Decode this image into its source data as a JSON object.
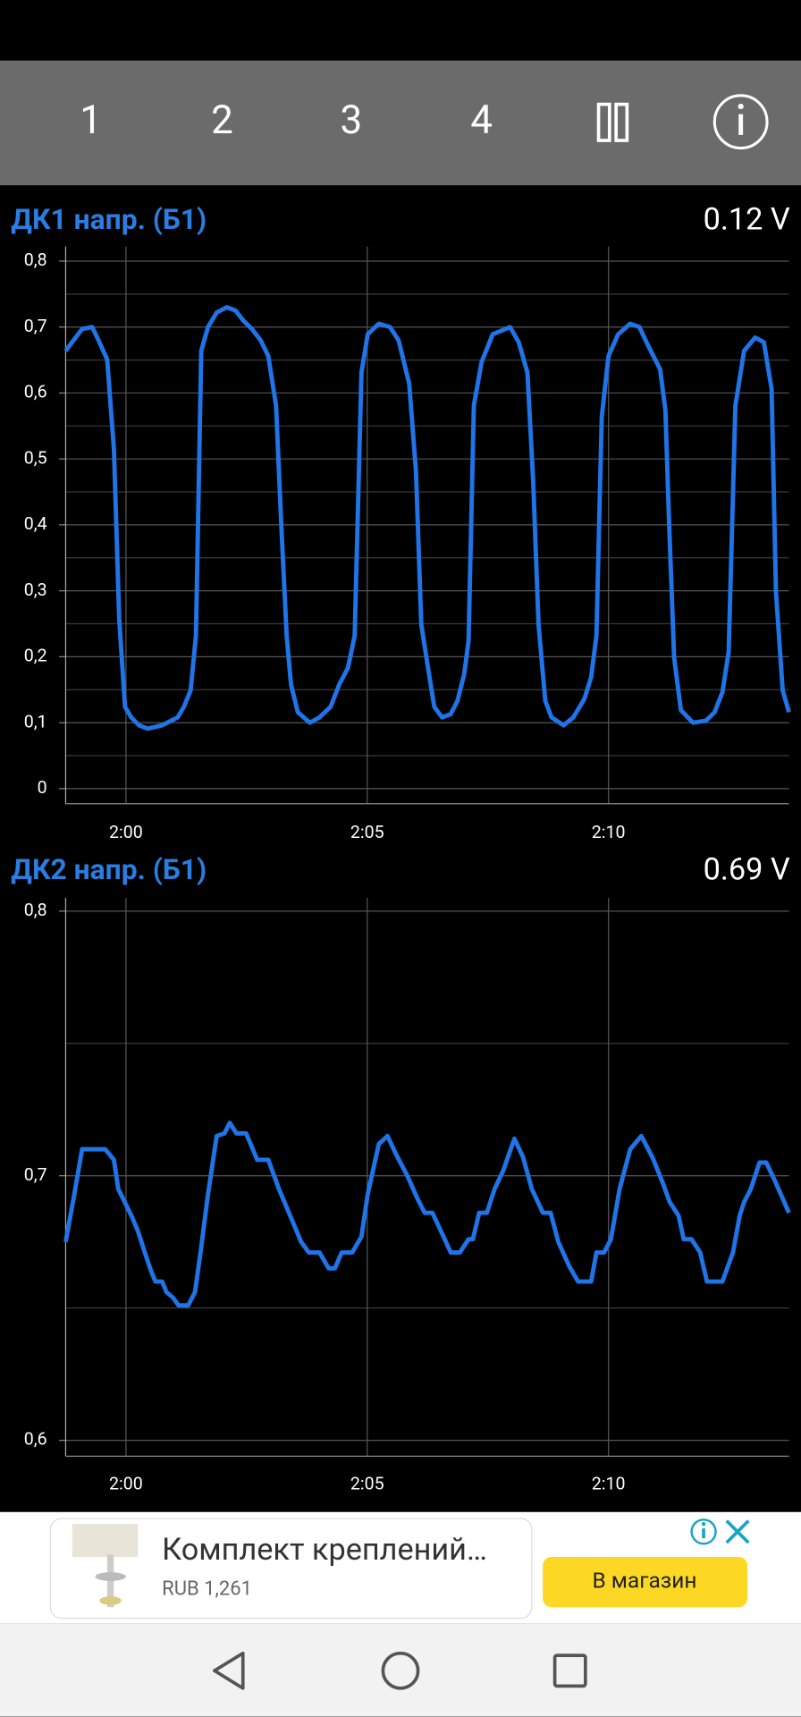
{
  "toolbar": {
    "buttons": [
      "1",
      "2",
      "3",
      "4"
    ]
  },
  "chart_data": [
    {
      "type": "line",
      "title": "ДК1 напр. (Б1)",
      "readout": "0.12 V",
      "color": "#1f74e8",
      "xlim": [
        118.75,
        133.74
      ],
      "xticks": [
        {
          "value": 120,
          "label": "2:00"
        },
        {
          "value": 125,
          "label": "2:05"
        },
        {
          "value": 130,
          "label": "2:10"
        }
      ],
      "ylim": [
        -0.023,
        0.822
      ],
      "yticks": [
        {
          "value": 0.8,
          "label": "0,8"
        },
        {
          "value": 0.7,
          "label": "0,7"
        },
        {
          "value": 0.6,
          "label": "0,6"
        },
        {
          "value": 0.5,
          "label": "0,5"
        },
        {
          "value": 0.4,
          "label": "0,4"
        },
        {
          "value": 0.3,
          "label": "0,3"
        },
        {
          "value": 0.2,
          "label": "0,2"
        },
        {
          "value": 0.1,
          "label": "0,1"
        },
        0
      ],
      "minor_yticks": [
        0.05,
        0.15,
        0.25,
        0.35,
        0.45,
        0.55,
        0.65,
        0.75
      ],
      "grid": true,
      "x": [
        118.75,
        119.09,
        119.3,
        119.43,
        119.61,
        119.75,
        119.86,
        119.98,
        120.11,
        120.27,
        120.45,
        120.75,
        121.07,
        121.2,
        121.34,
        121.45,
        121.56,
        121.7,
        121.88,
        122.09,
        122.27,
        122.43,
        122.61,
        122.79,
        122.95,
        123.11,
        123.22,
        123.33,
        123.42,
        123.56,
        123.81,
        124.01,
        124.24,
        124.42,
        124.6,
        124.74,
        124.88,
        125.01,
        125.24,
        125.47,
        125.65,
        125.87,
        126.01,
        126.12,
        126.26,
        126.39,
        126.55,
        126.73,
        126.87,
        127.01,
        127.1,
        127.21,
        127.37,
        127.6,
        127.96,
        128.14,
        128.32,
        128.44,
        128.55,
        128.69,
        128.82,
        129.07,
        129.27,
        129.5,
        129.64,
        129.75,
        129.86,
        130.0,
        130.2,
        130.45,
        130.64,
        130.82,
        131.07,
        131.18,
        131.25,
        131.36,
        131.5,
        131.75,
        132.02,
        132.2,
        132.36,
        132.49,
        132.63,
        132.81,
        133.04,
        133.22,
        133.38,
        133.47,
        133.61,
        133.74
      ],
      "values": [
        0.664,
        0.697,
        0.7,
        0.68,
        0.651,
        0.515,
        0.257,
        0.124,
        0.108,
        0.096,
        0.091,
        0.096,
        0.108,
        0.124,
        0.149,
        0.232,
        0.664,
        0.7,
        0.722,
        0.73,
        0.725,
        0.71,
        0.697,
        0.68,
        0.656,
        0.581,
        0.398,
        0.232,
        0.158,
        0.116,
        0.1,
        0.108,
        0.124,
        0.158,
        0.183,
        0.232,
        0.631,
        0.689,
        0.705,
        0.7,
        0.68,
        0.614,
        0.481,
        0.249,
        0.183,
        0.124,
        0.108,
        0.113,
        0.133,
        0.174,
        0.224,
        0.581,
        0.647,
        0.689,
        0.7,
        0.677,
        0.631,
        0.465,
        0.249,
        0.133,
        0.108,
        0.096,
        0.108,
        0.136,
        0.169,
        0.232,
        0.564,
        0.656,
        0.689,
        0.705,
        0.7,
        0.672,
        0.636,
        0.573,
        0.415,
        0.199,
        0.119,
        0.1,
        0.103,
        0.116,
        0.146,
        0.207,
        0.581,
        0.664,
        0.684,
        0.677,
        0.606,
        0.299,
        0.149,
        0.116
      ]
    },
    {
      "type": "line",
      "title": "ДК2 напр. (Б1)",
      "readout": "0.69 V",
      "color": "#1f74e8",
      "xlim": [
        118.75,
        133.74
      ],
      "xticks": [
        {
          "value": 120,
          "label": "2:00"
        },
        {
          "value": 125,
          "label": "2:05"
        },
        {
          "value": 130,
          "label": "2:10"
        }
      ],
      "ylim": [
        0.594,
        0.805
      ],
      "yticks": [
        {
          "value": 0.8,
          "label": "0,8"
        },
        {
          "value": 0.7,
          "label": "0,7"
        },
        {
          "value": 0.6,
          "label": "0,6"
        }
      ],
      "minor_yticks": [
        0.65,
        0.75
      ],
      "grid": true,
      "x": [
        118.75,
        118.93,
        119.09,
        119.57,
        119.75,
        119.84,
        120.11,
        120.25,
        120.39,
        120.52,
        120.61,
        120.75,
        120.84,
        120.97,
        121.09,
        121.29,
        121.43,
        121.56,
        121.7,
        121.88,
        122.04,
        122.15,
        122.29,
        122.49,
        122.72,
        122.95,
        123.17,
        123.4,
        123.63,
        123.79,
        124.01,
        124.2,
        124.33,
        124.47,
        124.69,
        124.88,
        125.01,
        125.24,
        125.42,
        125.6,
        125.83,
        126.05,
        126.19,
        126.35,
        126.58,
        126.73,
        126.92,
        127.1,
        127.19,
        127.32,
        127.48,
        127.64,
        127.82,
        128.05,
        128.23,
        128.41,
        128.64,
        128.8,
        128.96,
        129.18,
        129.37,
        129.64,
        129.75,
        129.91,
        130.05,
        130.23,
        130.45,
        130.68,
        130.91,
        131.13,
        131.27,
        131.45,
        131.56,
        131.72,
        131.9,
        132.04,
        132.36,
        132.58,
        132.72,
        132.81,
        132.95,
        133.13,
        133.27,
        133.45,
        133.74
      ],
      "values": [
        0.675,
        0.693,
        0.71,
        0.71,
        0.706,
        0.695,
        0.685,
        0.679,
        0.671,
        0.664,
        0.66,
        0.66,
        0.656,
        0.654,
        0.651,
        0.651,
        0.656,
        0.673,
        0.693,
        0.715,
        0.716,
        0.72,
        0.716,
        0.716,
        0.706,
        0.706,
        0.695,
        0.685,
        0.675,
        0.671,
        0.671,
        0.665,
        0.665,
        0.671,
        0.671,
        0.677,
        0.693,
        0.712,
        0.715,
        0.708,
        0.7,
        0.691,
        0.686,
        0.686,
        0.677,
        0.671,
        0.671,
        0.676,
        0.676,
        0.686,
        0.686,
        0.695,
        0.702,
        0.714,
        0.707,
        0.695,
        0.686,
        0.686,
        0.675,
        0.666,
        0.66,
        0.66,
        0.671,
        0.671,
        0.676,
        0.695,
        0.71,
        0.715,
        0.707,
        0.697,
        0.69,
        0.685,
        0.676,
        0.676,
        0.671,
        0.66,
        0.66,
        0.671,
        0.685,
        0.69,
        0.695,
        0.705,
        0.705,
        0.698,
        0.686
      ]
    }
  ],
  "ad": {
    "title": "Комплект креплений…",
    "price": "RUB 1,261",
    "button": "В магазин"
  }
}
